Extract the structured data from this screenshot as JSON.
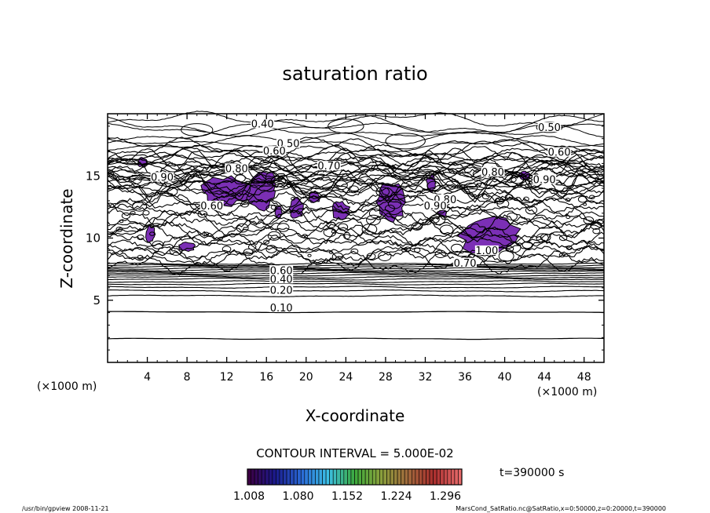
{
  "chart_data": {
    "type": "contour",
    "title": "saturation ratio",
    "xlabel": "X-coordinate",
    "ylabel": "Z-coordinate",
    "x_unit": "(×1000 m)",
    "y_unit": "(×1000 m)",
    "xlim": [
      0,
      50
    ],
    "ylim": [
      0,
      20
    ],
    "x_ticks": [
      4,
      8,
      12,
      16,
      20,
      24,
      28,
      32,
      36,
      40,
      44,
      48
    ],
    "y_ticks": [
      5,
      10,
      15
    ],
    "contour_interval": "CONTOUR INTERVAL = 5.000E-02",
    "labeled_contours": [
      {
        "label": "0.10",
        "x": 17.5,
        "z": 4.3
      },
      {
        "label": "0.20",
        "x": 17.5,
        "z": 5.7
      },
      {
        "label": "0.40",
        "x": 17.5,
        "z": 6.6
      },
      {
        "label": "0.60",
        "x": 17.5,
        "z": 7.3
      },
      {
        "label": "0.40",
        "x": 15.6,
        "z": 19.1
      },
      {
        "label": "0.50",
        "x": 18.2,
        "z": 17.5
      },
      {
        "label": "0.60",
        "x": 16.8,
        "z": 16.9
      },
      {
        "label": "0.80",
        "x": 13.0,
        "z": 15.5
      },
      {
        "label": "0.90",
        "x": 5.5,
        "z": 14.8
      },
      {
        "label": "0.70",
        "x": 22.3,
        "z": 15.7
      },
      {
        "label": "0.80",
        "x": 34.0,
        "z": 13.0
      },
      {
        "label": "0.90",
        "x": 33.0,
        "z": 12.5
      },
      {
        "label": "0.50",
        "x": 44.5,
        "z": 18.8
      },
      {
        "label": "0.60",
        "x": 45.5,
        "z": 16.8
      },
      {
        "label": "0.80",
        "x": 38.8,
        "z": 15.2
      },
      {
        "label": "0.90",
        "x": 44.0,
        "z": 14.6
      },
      {
        "label": "1.00",
        "x": 38.2,
        "z": 8.9
      },
      {
        "label": "0.70",
        "x": 36.0,
        "z": 7.9
      },
      {
        "label": "0.60",
        "x": 10.5,
        "z": 12.5
      }
    ],
    "colorbar": {
      "min": 1.008,
      "max": 1.296,
      "tick_labels": [
        "1.008",
        "1.080",
        "1.152",
        "1.224",
        "1.296"
      ],
      "colors": [
        "#3c0044",
        "#1a1a8c",
        "#2a6ad6",
        "#3cc0e6",
        "#3caa3c",
        "#8aa03c",
        "#a06a3c",
        "#aa2e2e",
        "#e66a6a"
      ]
    },
    "fill_color": "#7b2fb5",
    "time_label": "t=390000 s"
  },
  "footer": {
    "left": "/usr/bin/gpview  2008-11-21",
    "right": "MarsCond_SatRatio.nc@SatRatio,x=0:50000,z=0:20000,t=390000"
  }
}
